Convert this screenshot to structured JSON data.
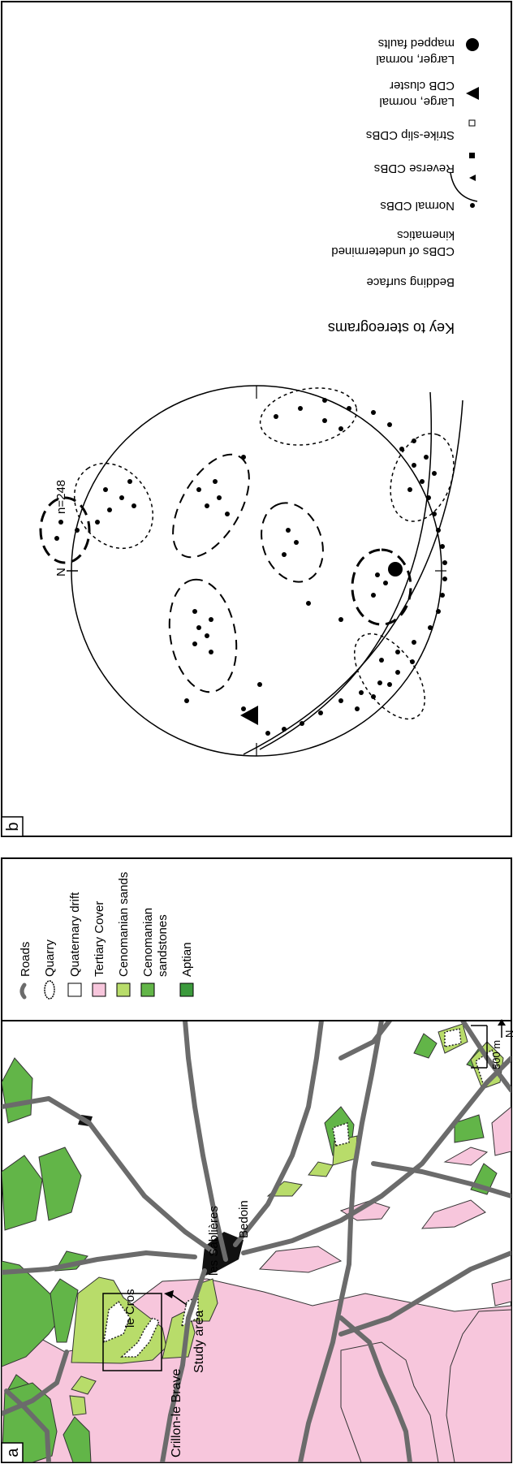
{
  "panel_a": {
    "label": "a",
    "scale": "500 m",
    "north": "N",
    "places": {
      "crillon": "Crillon-le Brave",
      "study_area": "Study area",
      "le_cros": "le Cros",
      "les_sablieres": "les Sablières",
      "bedoin": "Bedoin"
    },
    "legend": {
      "roads": "Roads",
      "quarry": "Quarry",
      "quaternary": "Quaternary drift",
      "tertiary": "Tertiary Cover",
      "cenomanian_sands": "Cenomanian sands",
      "cenomanian_sandstones_1": "Cenomanian",
      "cenomanian_sandstones_2": "sandstones",
      "aptian": "Aptian"
    },
    "colors": {
      "tertiary": "#f7c6dc",
      "cenomanian_sands": "#b8dc6a",
      "cenomanian_sandstones": "#62b548",
      "aptian": "#3b9a3c",
      "roads": "#6b6b6b"
    }
  },
  "panel_b": {
    "label": "b",
    "north": "N",
    "count": "n=248",
    "key": {
      "title": "Key to stereograms",
      "bedding": "Bedding surface",
      "undetermined_1": "CDBs of undetermined",
      "undetermined_2": "kinematics",
      "normal": "Normal CDBs",
      "reverse": "Reverse CDBs",
      "strike_slip": "Strike-slip CDBs",
      "large_normal_1": "Large, normal",
      "large_normal_2": "CDB cluster",
      "larger_normal_1": "Larger, normal",
      "larger_normal_2": "mapped faults"
    }
  }
}
